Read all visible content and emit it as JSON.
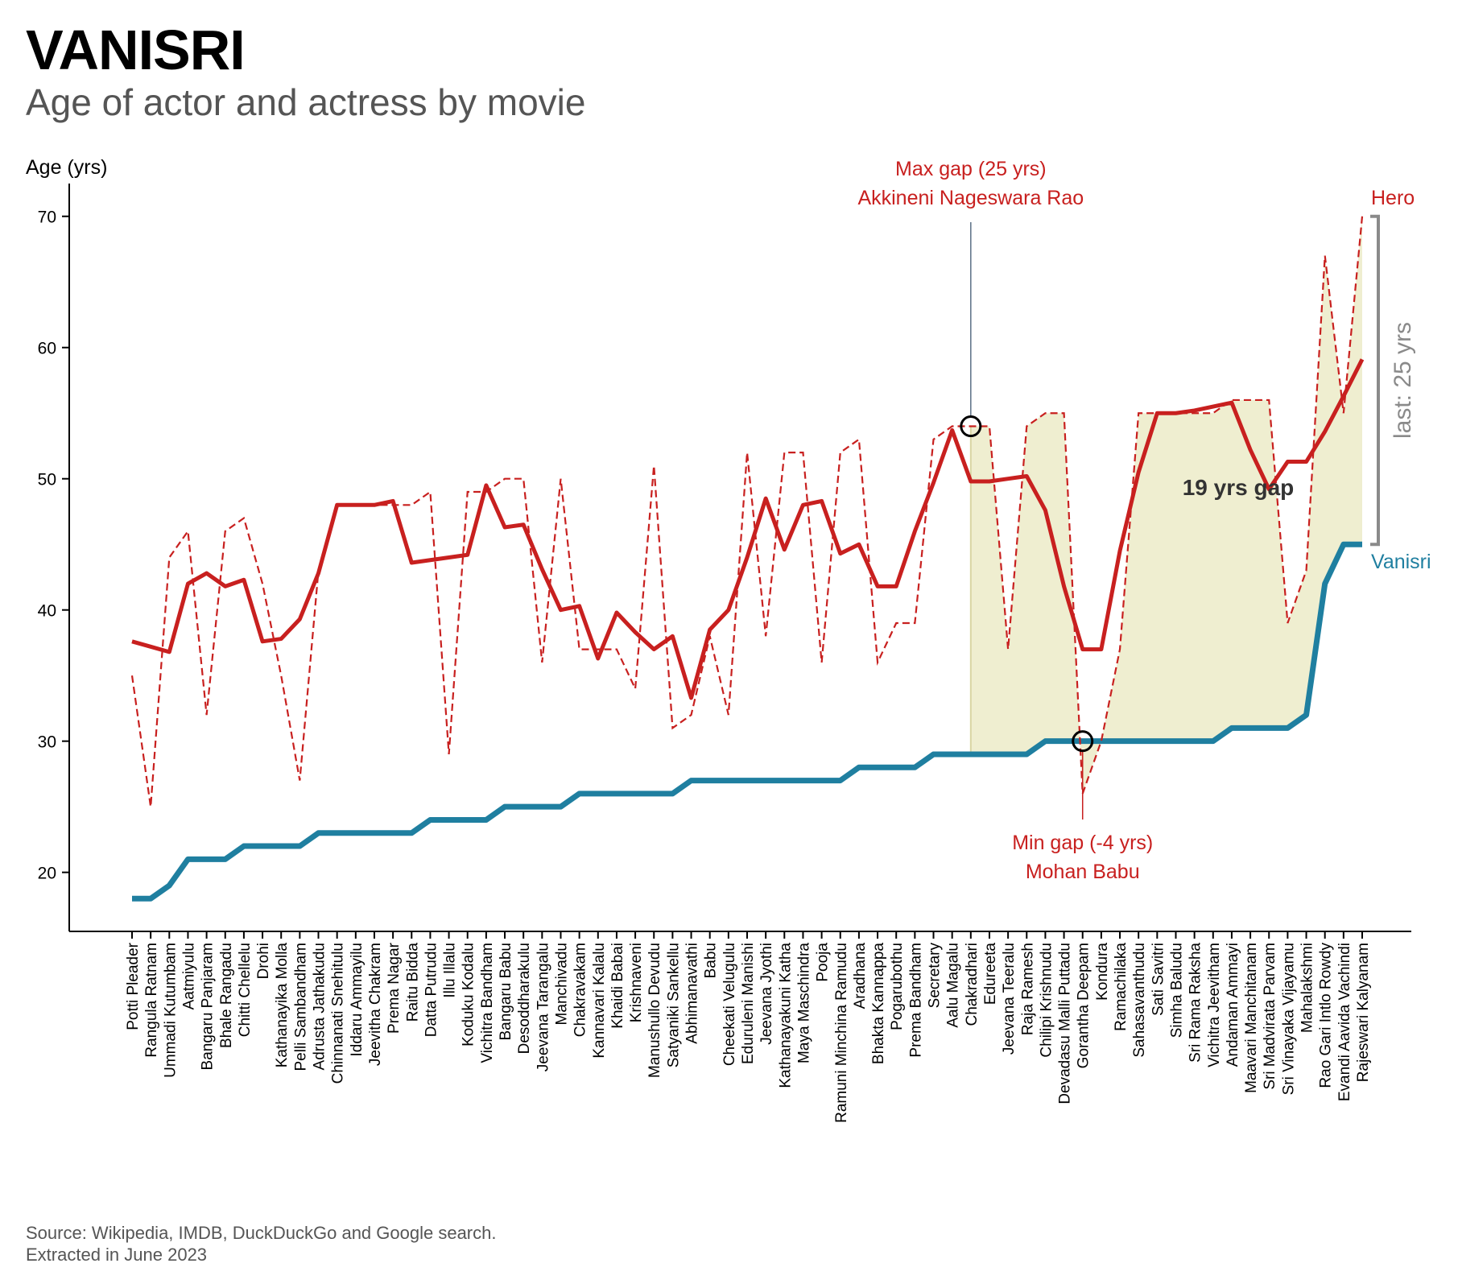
{
  "header": {
    "title": "VANISRI",
    "subtitle": "Age of actor and actress by movie"
  },
  "footer": {
    "source_line1": "Source: Wikipedia, IMDB, DuckDuckGo and Google search.",
    "source_line2": "Extracted in June 2023"
  },
  "colors": {
    "hero": "#c8201f",
    "actress": "#1f7fa0",
    "gap_fill": "#ecebc8",
    "bracket": "#8a8a8a"
  },
  "chart_data": {
    "type": "line",
    "ylabel": "Age (yrs)",
    "ylim": [
      15.5,
      72.5
    ],
    "yticks": [
      20,
      30,
      40,
      50,
      60,
      70
    ],
    "grid": false,
    "categories": [
      "Potti Pleader",
      "Rangula Ratnam",
      "Ummadi Kutumbam",
      "Aatmiyulu",
      "Bangaru Panjaram",
      "Bhale Rangadu",
      "Chitti Chellelu",
      "Drohi",
      "Kathanayika Molla",
      "Pelli Sambandham",
      "Adrusta Jathakudu",
      "Chinnanati Snehitulu",
      "Iddaru Ammayilu",
      "Jeevitha Chakram",
      "Prema Nagar",
      "Raitu Bidda",
      "Datta Putrudu",
      "Illu Illalu",
      "Koduku Kodalu",
      "Vichitra Bandham",
      "Bangaru Babu",
      "Desoddharakulu",
      "Jeevana Tarangalu",
      "Manchivadu",
      "Chakravakam",
      "Kannavari Kalalu",
      "Khaidi Babai",
      "Krishnaveni",
      "Manushullo Devudu",
      "Satyaniki Sankellu",
      "Abhimanavathi",
      "Babu",
      "Cheekati Velugulu",
      "Eduruleni Manishi",
      "Jeevana Jyothi",
      "Kathanayakuni Katha",
      "Maya Maschindra",
      "Pooja",
      "Ramuni Minchina Ramudu",
      "Aradhana",
      "Bhakta Kannappa",
      "Pogarubothu",
      "Prema Bandham",
      "Secretary",
      "Aalu Magalu",
      "Chakradhari",
      "Edureeta",
      "Jeevana Teeralu",
      "Raja Ramesh",
      "Chilipi Krishnudu",
      "Devadasu Malli Puttadu",
      "Gorantha Deepam",
      "Kondura",
      "Ramachilaka",
      "Sahasavanthudu",
      "Sati Savitri",
      "Simha Baludu",
      "Sri Rama Raksha",
      "Vichitra Jeevitham",
      "Andaman Ammayi",
      "Maavari Manchitanam",
      "Sri Madvirata Parvam",
      "Sri Vinayaka Vijayamu",
      "Mahalakshmi",
      "Rao Gari Intlo Rowdy",
      "Evandi Aavida Vachindi",
      "Rajeswari Kalyanam"
    ],
    "series": [
      {
        "name": "Hero",
        "style": "dashed",
        "values": [
          35,
          25,
          44,
          46,
          32,
          46,
          47,
          42,
          35,
          27,
          43,
          48,
          48,
          48,
          48,
          48,
          49,
          29,
          49,
          49,
          50,
          50,
          36,
          50,
          37,
          37,
          37,
          34,
          51,
          31,
          32,
          38,
          32,
          52,
          38,
          52,
          52,
          36,
          52,
          53,
          36,
          39,
          39,
          53,
          54,
          54,
          54,
          37,
          54,
          55,
          55,
          26,
          30,
          37,
          55,
          55,
          55,
          55,
          55,
          56,
          56,
          56,
          39,
          43,
          67,
          55,
          70
        ]
      },
      {
        "name": "Hero",
        "style": "smoothed",
        "values": [
          37.6,
          37.2,
          36.8,
          42.0,
          42.8,
          41.8,
          42.3,
          37.6,
          37.8,
          39.3,
          42.8,
          48.0,
          48.0,
          48.0,
          48.3,
          43.6,
          43.8,
          44.0,
          44.2,
          49.5,
          46.3,
          46.5,
          43.1,
          40.0,
          40.3,
          36.3,
          39.8,
          38.3,
          37.0,
          38.0,
          33.3,
          38.5,
          40.0,
          44.0,
          48.5,
          44.6,
          48.0,
          48.3,
          44.3,
          45.0,
          41.8,
          41.8,
          46.0,
          49.7,
          53.7,
          49.8,
          49.8,
          50.0,
          50.2,
          47.6,
          41.8,
          37.0,
          37.0,
          44.5,
          50.5,
          55.0,
          55.0,
          55.2,
          55.5,
          55.8,
          52.2,
          49.2,
          51.3,
          51.3,
          53.6,
          56.3,
          59.1
        ]
      },
      {
        "name": "Vanisri",
        "style": "solid",
        "values": [
          18,
          18,
          19,
          21,
          21,
          21,
          22,
          22,
          22,
          22,
          23,
          23,
          23,
          23,
          23,
          23,
          24,
          24,
          24,
          24,
          25,
          25,
          25,
          25,
          26,
          26,
          26,
          26,
          26,
          26,
          27,
          27,
          27,
          27,
          27,
          27,
          27,
          27,
          27,
          28,
          28,
          28,
          28,
          29,
          29,
          29,
          29,
          29,
          29,
          30,
          30,
          30,
          30,
          30,
          30,
          30,
          30,
          30,
          30,
          31,
          31,
          31,
          31,
          32,
          42,
          45,
          45
        ]
      }
    ],
    "gap_shading_from": "Chakradhari",
    "annotations": {
      "hero_label": "Hero",
      "actress_label": "Vanisri",
      "max_gap_line1": "Max gap (25 yrs)",
      "max_gap_line2": "Akkineni Nageswara Rao",
      "max_gap_movie": "Chakradhari",
      "max_gap_age": 54,
      "min_gap_line1": "Min gap (-4 yrs)",
      "min_gap_line2": "Mohan Babu",
      "min_gap_movie": "Gorantha Deepam",
      "min_gap_age": 30,
      "avg_gap_label": "19 yrs gap",
      "last_gap_label": "last: 25 yrs",
      "last_gap_range": [
        45,
        70
      ]
    }
  }
}
